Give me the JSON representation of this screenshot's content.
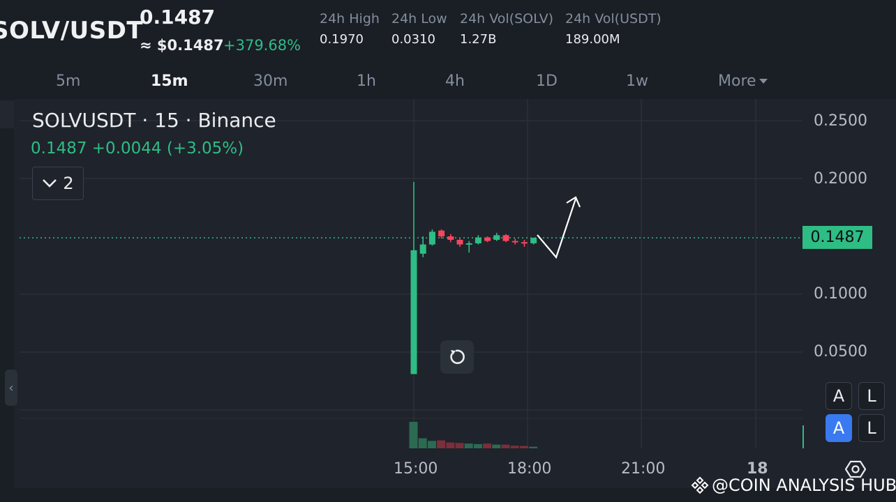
{
  "header": {
    "pair": "SOLV/USDT",
    "price": "0.1487",
    "approx_usd": "≈ $0.1487",
    "change_pct": "+379.68%",
    "stats": [
      {
        "label": "24h High",
        "value": "0.1970"
      },
      {
        "label": "24h Low",
        "value": "0.0310"
      },
      {
        "label": "24h Vol(SOLV)",
        "value": "1.27B"
      },
      {
        "label": "24h Vol(USDT)",
        "value": "189.00M"
      }
    ]
  },
  "timeframes": {
    "items": [
      "5m",
      "15m",
      "30m",
      "1h",
      "4h",
      "1D",
      "1w"
    ],
    "active": "15m",
    "more_label": "More"
  },
  "legend": {
    "title": "SOLVUSDT · 15 · Binance",
    "quote": "0.1487  +0.0044 (+3.05%)",
    "collapse_count": "2"
  },
  "axis": {
    "price_tag": "0.1487",
    "y_labels": [
      "0.2500",
      "0.2000",
      "0.1000",
      "0.0500"
    ],
    "x_labels": [
      "15:00",
      "18:00",
      "21:00",
      "18"
    ],
    "auto_label": "A",
    "log_label": "L"
  },
  "watermark": "@COIN ANALYSIS HUB",
  "colors": {
    "up": "#2ebd85",
    "down": "#f6465d",
    "background": "#1f232b",
    "grid": "#2b3039",
    "accent_blue": "#3a7af0"
  },
  "chart_data": {
    "type": "candlestick",
    "interval": "15m",
    "ylim": [
      0.0,
      0.27
    ],
    "last_price": 0.1487,
    "candles": [
      {
        "o": 0.031,
        "h": 0.197,
        "l": 0.031,
        "c": 0.138
      },
      {
        "o": 0.135,
        "h": 0.15,
        "l": 0.132,
        "c": 0.143
      },
      {
        "o": 0.143,
        "h": 0.156,
        "l": 0.142,
        "c": 0.154
      },
      {
        "o": 0.155,
        "h": 0.156,
        "l": 0.148,
        "c": 0.15
      },
      {
        "o": 0.15,
        "h": 0.152,
        "l": 0.145,
        "c": 0.147
      },
      {
        "o": 0.147,
        "h": 0.148,
        "l": 0.141,
        "c": 0.143
      },
      {
        "o": 0.143,
        "h": 0.146,
        "l": 0.136,
        "c": 0.144
      },
      {
        "o": 0.144,
        "h": 0.151,
        "l": 0.143,
        "c": 0.149
      },
      {
        "o": 0.149,
        "h": 0.15,
        "l": 0.145,
        "c": 0.146
      },
      {
        "o": 0.147,
        "h": 0.153,
        "l": 0.146,
        "c": 0.151
      },
      {
        "o": 0.151,
        "h": 0.152,
        "l": 0.145,
        "c": 0.146
      },
      {
        "o": 0.146,
        "h": 0.148,
        "l": 0.143,
        "c": 0.145
      },
      {
        "o": 0.145,
        "h": 0.147,
        "l": 0.141,
        "c": 0.144
      },
      {
        "o": 0.144,
        "h": 0.149,
        "l": 0.143,
        "c": 0.1487
      }
    ],
    "volumes": [
      100,
      38,
      28,
      30,
      22,
      20,
      18,
      16,
      18,
      14,
      14,
      10,
      9,
      6
    ]
  }
}
